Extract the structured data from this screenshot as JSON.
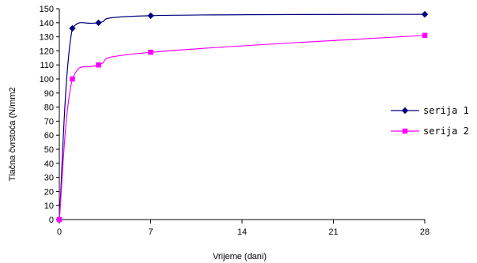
{
  "chart_data": {
    "type": "line",
    "title": "",
    "xlabel": "Vrijeme (dani)",
    "ylabel": "Tlačna čvrstoća (N/mm2",
    "xlim": [
      0,
      28
    ],
    "ylim": [
      0,
      150
    ],
    "x_ticks": [
      0,
      7,
      14,
      21,
      28
    ],
    "y_ticks": [
      0,
      10,
      20,
      30,
      40,
      50,
      60,
      70,
      80,
      90,
      100,
      110,
      120,
      130,
      140,
      150
    ],
    "grid": false,
    "legend_position": "right",
    "series": [
      {
        "name": "serija 1",
        "color": "#000080",
        "marker": "diamond",
        "points": [
          [
            0,
            0
          ],
          [
            1,
            136
          ],
          [
            3,
            140
          ],
          [
            7,
            145
          ],
          [
            28,
            146
          ]
        ]
      },
      {
        "name": "serija 2",
        "color": "#ff00ff",
        "marker": "square",
        "points": [
          [
            0,
            0
          ],
          [
            1,
            100
          ],
          [
            3,
            110
          ],
          [
            7,
            119
          ],
          [
            28,
            131
          ]
        ]
      }
    ]
  }
}
